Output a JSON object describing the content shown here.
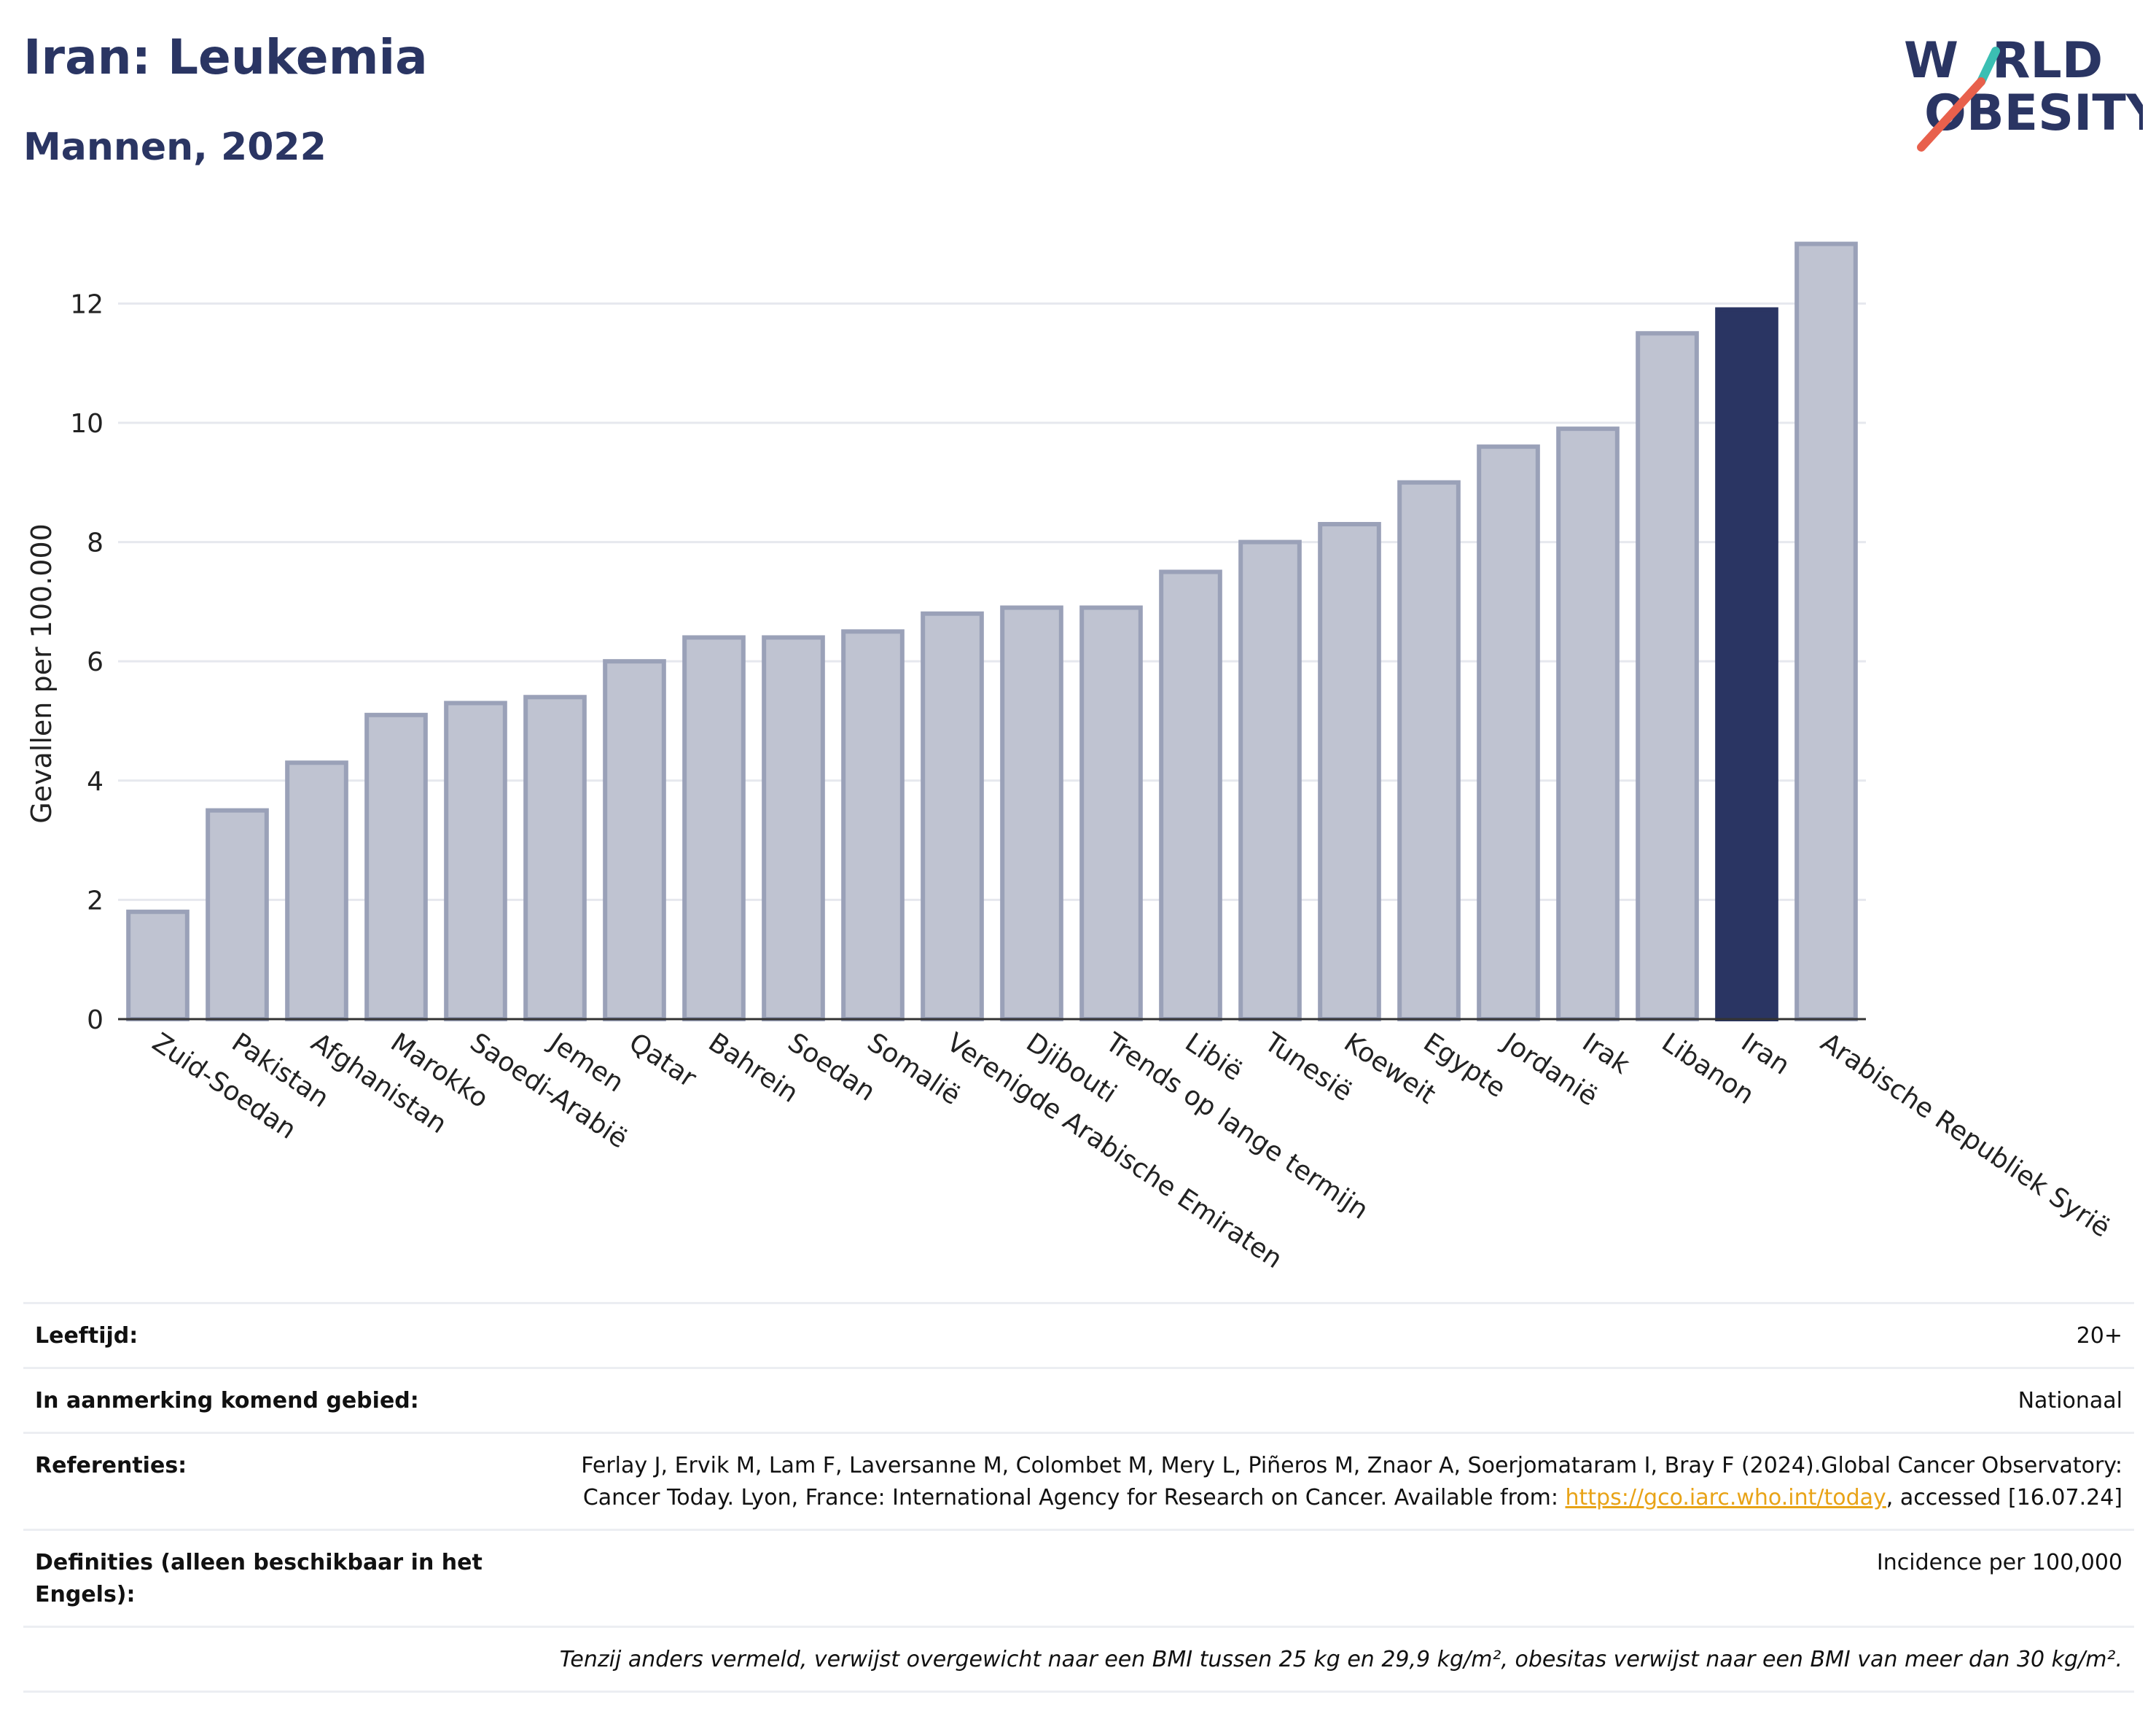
{
  "header": {
    "title": "Iran: Leukemia",
    "subtitle": "Mannen, 2022"
  },
  "logo": {
    "line1_a": "W",
    "line1_b": "RLD",
    "line2_a": "O",
    "line2_b": "BESITY",
    "text_color": "#2a3563",
    "slash_colors": [
      "#3bbfb3",
      "#e8604c"
    ]
  },
  "chart_data": {
    "type": "bar",
    "ylabel": "Gevallen per 100.000",
    "ylim": [
      0,
      13.3
    ],
    "yticks": [
      0,
      2,
      4,
      6,
      8,
      10,
      12
    ],
    "grid": true,
    "highlight_category": "Iran",
    "colors": {
      "bar": "#bfc3d1",
      "bar_stroke": "#9aa1b8",
      "highlight": "#2a3563"
    },
    "categories": [
      "Zuid-Soedan",
      "Pakistan",
      "Afghanistan",
      "Marokko",
      "Saoedi-Arabië",
      "Jemen",
      "Qatar",
      "Bahrein",
      "Soedan",
      "Somalië",
      "Verenigde Arabische Emiraten",
      "Djibouti",
      "Trends op lange termijn",
      "Libië",
      "Tunesië",
      "Koeweit",
      "Egypte",
      "Jordanië",
      "Irak",
      "Libanon",
      "Iran",
      "Arabische Republiek Syrië"
    ],
    "values": [
      1.8,
      3.5,
      4.3,
      5.1,
      5.3,
      5.4,
      6.0,
      6.4,
      6.4,
      6.5,
      6.8,
      6.9,
      6.9,
      7.5,
      8.0,
      8.3,
      9.0,
      9.6,
      9.9,
      11.5,
      11.9,
      13.0
    ]
  },
  "info": {
    "rows": [
      {
        "label": "Leeftijd:",
        "value": "20+"
      },
      {
        "label": "In aanmerking komend gebied:",
        "value": "Nationaal"
      },
      {
        "label": "Referenties:",
        "value_before": "Ferlay J, Ervik M, Lam F, Laversanne M, Colombet M, Mery L, Piñeros M, Znaor A, Soerjomataram I, Bray F (2024).Global Cancer Observatory: Cancer Today. Lyon, France: International Agency for Research on Cancer. Available from: ",
        "link": "https://gco.iarc.who.int/today",
        "value_after": ", accessed [16.07.24]"
      },
      {
        "label": "Definities (alleen beschikbaar in het Engels):",
        "value": "Incidence per 100,000"
      }
    ],
    "footnote": "Tenzij anders vermeld, verwijst overgewicht naar een BMI tussen 25 kg en 29,9 kg/m², obesitas verwijst naar een BMI van meer dan 30 kg/m²."
  }
}
